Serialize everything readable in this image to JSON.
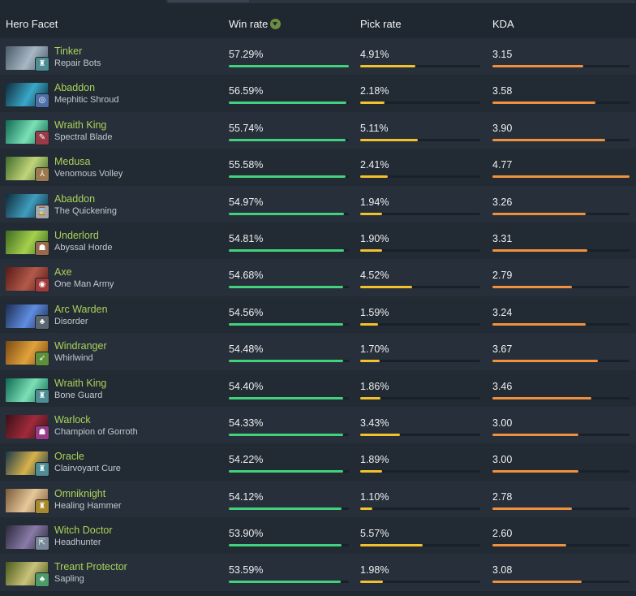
{
  "header": {
    "hero_facet": "Hero Facet",
    "win_rate": "Win rate",
    "pick_rate": "Pick rate",
    "kda": "KDA"
  },
  "colors": {
    "hero_name": "#aad35a",
    "win_bar": "#42d17c",
    "pick_bar": "#f2c12e",
    "kda_bar": "#f0913f"
  },
  "rows": [
    {
      "hero": "Tinker",
      "facet": "Repair Bots",
      "win_rate": "57.29%",
      "pick_rate": "4.91%",
      "kda": "3.15",
      "win_fill": 1.0,
      "pick_fill": 0.46,
      "kda_fill": 0.66,
      "portrait": [
        "#4a5a6a",
        "#a9b7c4"
      ],
      "facet_icon": "repair-bots-icon",
      "facet_color": "#4d8d93",
      "glyph": "♜"
    },
    {
      "hero": "Abaddon",
      "facet": "Mephitic Shroud",
      "win_rate": "56.59%",
      "pick_rate": "2.18%",
      "kda": "3.58",
      "win_fill": 0.98,
      "pick_fill": 0.2,
      "kda_fill": 0.75,
      "portrait": [
        "#0f2a3a",
        "#39a8c8"
      ],
      "facet_icon": "mephitic-shroud-icon",
      "facet_color": "#4f6fa8",
      "glyph": "◎"
    },
    {
      "hero": "Wraith King",
      "facet": "Spectral Blade",
      "win_rate": "55.74%",
      "pick_rate": "5.11%",
      "kda": "3.90",
      "win_fill": 0.97,
      "pick_fill": 0.48,
      "kda_fill": 0.82,
      "portrait": [
        "#0f6a52",
        "#7be0b6"
      ],
      "facet_icon": "spectral-blade-icon",
      "facet_color": "#9a3a49",
      "glyph": "✎"
    },
    {
      "hero": "Medusa",
      "facet": "Venomous Volley",
      "win_rate": "55.58%",
      "pick_rate": "2.41%",
      "kda": "4.77",
      "win_fill": 0.97,
      "pick_fill": 0.23,
      "kda_fill": 1.0,
      "portrait": [
        "#3f6b2a",
        "#c2d47a"
      ],
      "facet_icon": "venomous-volley-icon",
      "facet_color": "#9a7a4e",
      "glyph": "⅄"
    },
    {
      "hero": "Abaddon",
      "facet": "The Quickening",
      "win_rate": "54.97%",
      "pick_rate": "1.94%",
      "kda": "3.26",
      "win_fill": 0.96,
      "pick_fill": 0.18,
      "kda_fill": 0.68,
      "portrait": [
        "#0f2a3a",
        "#3f9dbd"
      ],
      "facet_icon": "the-quickening-icon",
      "facet_color": "#a6a6a6",
      "glyph": "⌛"
    },
    {
      "hero": "Underlord",
      "facet": "Abyssal Horde",
      "win_rate": "54.81%",
      "pick_rate": "1.90%",
      "kda": "3.31",
      "win_fill": 0.96,
      "pick_fill": 0.18,
      "kda_fill": 0.69,
      "portrait": [
        "#3e6a22",
        "#a5d04c"
      ],
      "facet_icon": "abyssal-horde-icon",
      "facet_color": "#9a6a4e",
      "glyph": "☗"
    },
    {
      "hero": "Axe",
      "facet": "One Man Army",
      "win_rate": "54.68%",
      "pick_rate": "4.52%",
      "kda": "2.79",
      "win_fill": 0.95,
      "pick_fill": 0.43,
      "kda_fill": 0.58,
      "portrait": [
        "#5a1a16",
        "#b25a4a"
      ],
      "facet_icon": "one-man-army-icon",
      "facet_color": "#a23a3a",
      "glyph": "◉"
    },
    {
      "hero": "Arc Warden",
      "facet": "Disorder",
      "win_rate": "54.56%",
      "pick_rate": "1.59%",
      "kda": "3.24",
      "win_fill": 0.95,
      "pick_fill": 0.15,
      "kda_fill": 0.68,
      "portrait": [
        "#1c2d52",
        "#5f8de0"
      ],
      "facet_icon": "disorder-icon",
      "facet_color": "#5a6670",
      "glyph": "♣"
    },
    {
      "hero": "Windranger",
      "facet": "Whirlwind",
      "win_rate": "54.48%",
      "pick_rate": "1.70%",
      "kda": "3.67",
      "win_fill": 0.95,
      "pick_fill": 0.16,
      "kda_fill": 0.77,
      "portrait": [
        "#7a4a14",
        "#e2a23a"
      ],
      "facet_icon": "whirlwind-icon",
      "facet_color": "#5e8f3a",
      "glyph": "➶"
    },
    {
      "hero": "Wraith King",
      "facet": "Bone Guard",
      "win_rate": "54.40%",
      "pick_rate": "1.86%",
      "kda": "3.46",
      "win_fill": 0.95,
      "pick_fill": 0.17,
      "kda_fill": 0.72,
      "portrait": [
        "#0f6a52",
        "#7be0b6"
      ],
      "facet_icon": "bone-guard-icon",
      "facet_color": "#4d8d93",
      "glyph": "♜"
    },
    {
      "hero": "Warlock",
      "facet": "Champion of Gorroth",
      "win_rate": "54.33%",
      "pick_rate": "3.43%",
      "kda": "3.00",
      "win_fill": 0.95,
      "pick_fill": 0.33,
      "kda_fill": 0.63,
      "portrait": [
        "#3a1018",
        "#a02a3a"
      ],
      "facet_icon": "champion-of-gorroth-icon",
      "facet_color": "#9a3a8a",
      "glyph": "☗"
    },
    {
      "hero": "Oracle",
      "facet": "Clairvoyant Cure",
      "win_rate": "54.22%",
      "pick_rate": "1.89%",
      "kda": "3.00",
      "win_fill": 0.95,
      "pick_fill": 0.18,
      "kda_fill": 0.63,
      "portrait": [
        "#1a3a4a",
        "#d8b24a"
      ],
      "facet_icon": "clairvoyant-cure-icon",
      "facet_color": "#4d8d93",
      "glyph": "♜"
    },
    {
      "hero": "Omniknight",
      "facet": "Healing Hammer",
      "win_rate": "54.12%",
      "pick_rate": "1.10%",
      "kda": "2.78",
      "win_fill": 0.94,
      "pick_fill": 0.1,
      "kda_fill": 0.58,
      "portrait": [
        "#7a5a3a",
        "#e6c89a"
      ],
      "facet_icon": "healing-hammer-icon",
      "facet_color": "#a8892e",
      "glyph": "♜"
    },
    {
      "hero": "Witch Doctor",
      "facet": "Headhunter",
      "win_rate": "53.90%",
      "pick_rate": "5.57%",
      "kda": "2.60",
      "win_fill": 0.94,
      "pick_fill": 0.52,
      "kda_fill": 0.54,
      "portrait": [
        "#2a2a3a",
        "#8a7aa8"
      ],
      "facet_icon": "headhunter-icon",
      "facet_color": "#7a8a9a",
      "glyph": "⇱"
    },
    {
      "hero": "Treant Protector",
      "facet": "Sapling",
      "win_rate": "53.59%",
      "pick_rate": "1.98%",
      "kda": "3.08",
      "win_fill": 0.93,
      "pick_fill": 0.19,
      "kda_fill": 0.65,
      "portrait": [
        "#4a5a1a",
        "#c9c27a"
      ],
      "facet_icon": "sapling-icon",
      "facet_color": "#4d9a6a",
      "glyph": "♣"
    }
  ]
}
